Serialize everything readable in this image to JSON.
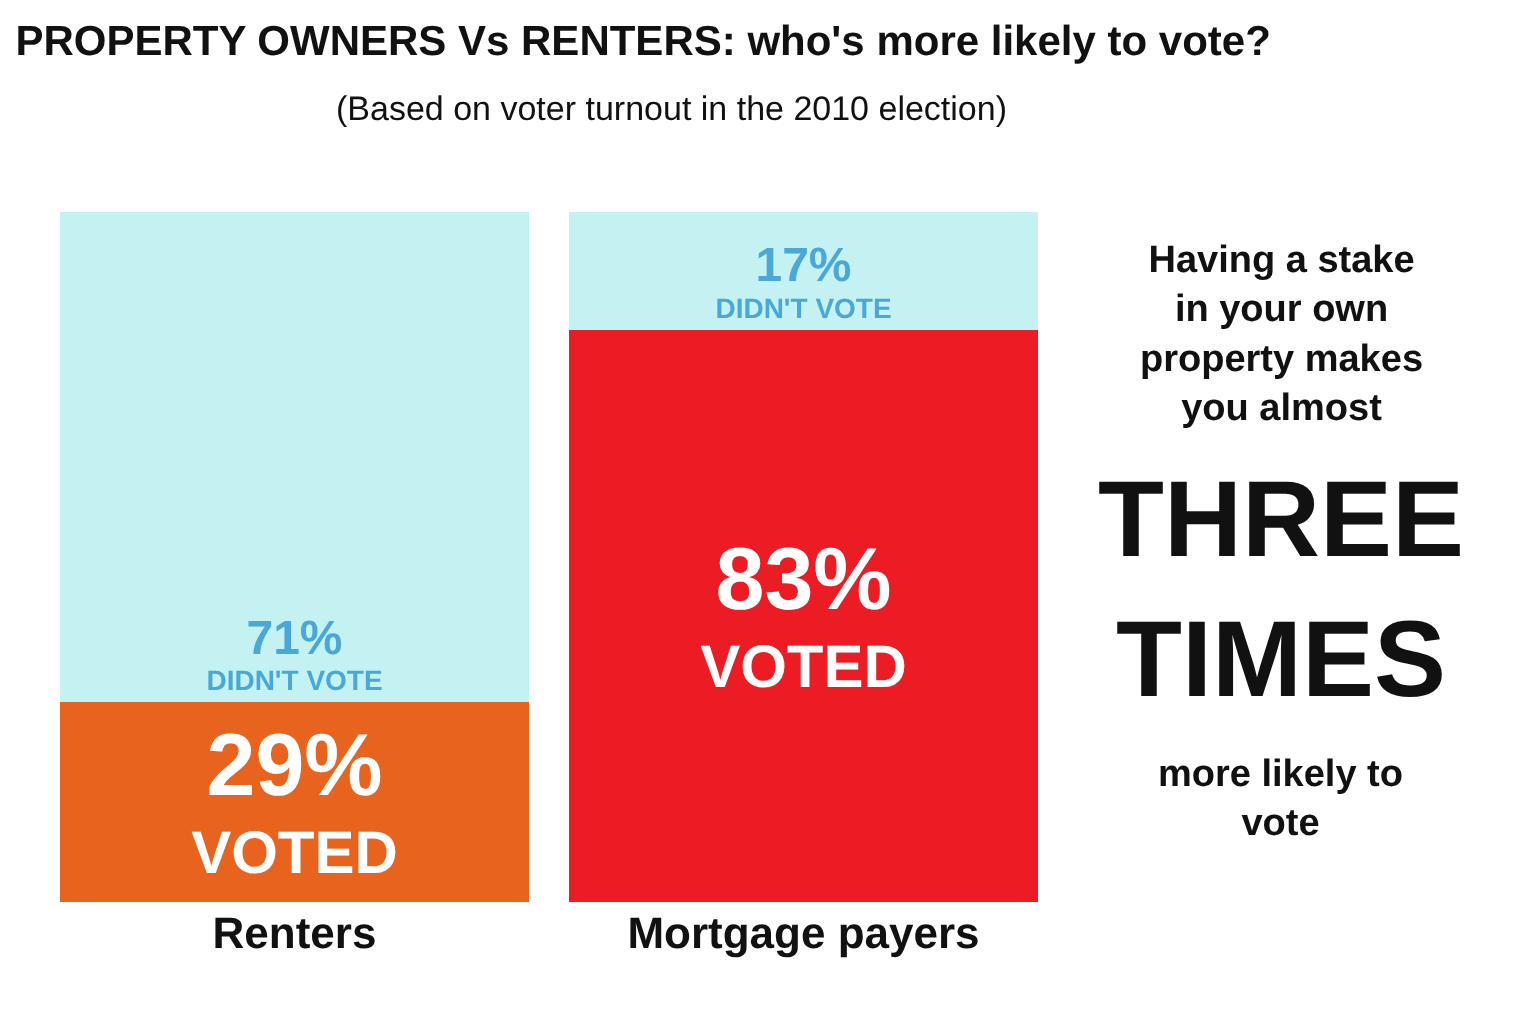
{
  "chart_data": {
    "type": "bar",
    "title": "PROPERTY OWNERS Vs RENTERS: who's more likely to vote?",
    "subtitle": "(Based on voter turnout in the 2010 election)",
    "categories": [
      "Renters",
      "Mortgage payers"
    ],
    "stacked": true,
    "legend": false,
    "series": [
      {
        "name": "VOTED",
        "colors": [
          "#e8641e",
          "#ec1c24"
        ],
        "values": [
          29,
          83
        ],
        "value_labels": [
          "29%",
          "83%"
        ]
      },
      {
        "name": "DIDN'T VOTE",
        "color": "#c4f2f2",
        "values": [
          71,
          17
        ],
        "value_labels": [
          "71%",
          "17%"
        ]
      }
    ],
    "annotations": [
      "Having a stake in your own property makes you almost",
      "THREE TIMES",
      "more likely to vote"
    ]
  }
}
